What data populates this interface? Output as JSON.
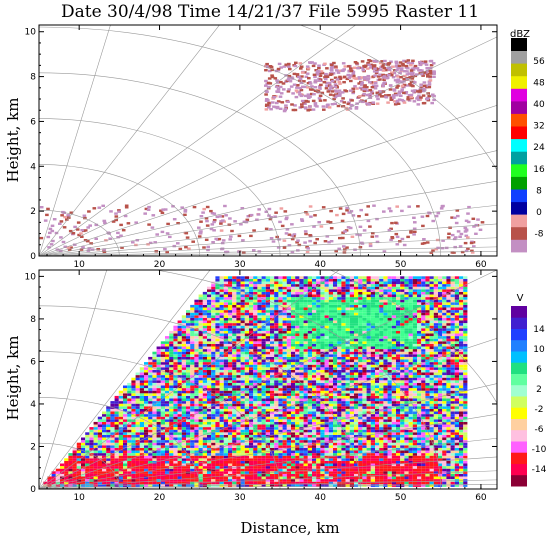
{
  "title": "Date 30/4/98 Time 14/21/37 File 5995 Raster 11",
  "xlabel": "Distance, km",
  "chart_data": [
    {
      "type": "heatmap",
      "ylabel": "Height, km",
      "xlim": [
        5,
        62
      ],
      "ylim": [
        0,
        10.3
      ],
      "xticks": [
        "10",
        "20",
        "30",
        "40",
        "50",
        "60"
      ],
      "yticks": [
        "0",
        "2",
        "4",
        "6",
        "8",
        "10"
      ],
      "colorbar": {
        "unit": "dBZ",
        "labels": [
          "56",
          "48",
          "40",
          "32",
          "24",
          "16",
          "8",
          "0",
          "-8"
        ],
        "colors": [
          "#c38fc3",
          "#b8524a",
          "#f0a0a0",
          "#0000a0",
          "#1040ff",
          "#00a000",
          "#20ff20",
          "#00a0a0",
          "#00ffff",
          "#ff0000",
          "#ff5000",
          "#a000a0",
          "#e000e0",
          "#f0f000",
          "#c0c000",
          "#a0a0a0",
          "#000000"
        ]
      },
      "echoes": [
        {
          "name": "upper cell",
          "x": [
            33,
            45
          ],
          "y": [
            6.5,
            8.7
          ],
          "dbz": [
            -8,
            8
          ]
        },
        {
          "name": "upper right cell",
          "x": [
            45,
            54
          ],
          "y": [
            6.8,
            8.8
          ],
          "dbz": [
            -8,
            4
          ]
        },
        {
          "name": "low layer",
          "x": [
            5,
            60
          ],
          "y": [
            0.2,
            2.3
          ],
          "dbz": [
            -8,
            4
          ]
        }
      ]
    },
    {
      "type": "heatmap",
      "ylabel": "Height, km",
      "xlim": [
        5,
        62
      ],
      "ylim": [
        0,
        10.3
      ],
      "xticks": [
        "10",
        "20",
        "30",
        "40",
        "50",
        "60"
      ],
      "yticks": [
        "0",
        "2",
        "4",
        "6",
        "8",
        "10"
      ],
      "colorbar": {
        "unit": "V",
        "labels": [
          "14",
          "10",
          "6",
          "2",
          "-2",
          "-6",
          "-10",
          "-14"
        ],
        "colors": [
          "#8b0035",
          "#ff0050",
          "#ff1a1a",
          "#ff60ff",
          "#ffc0e0",
          "#ffd0a0",
          "#ffff00",
          "#d0ff60",
          "#a0ffd0",
          "#60ffa0",
          "#20e080",
          "#00c0ff",
          "#2080ff",
          "#2040ff",
          "#4020d0",
          "#6000a0"
        ]
      },
      "features": [
        {
          "name": "noise wedge",
          "x": [
            5,
            58
          ],
          "y": [
            0,
            10
          ]
        },
        {
          "name": "upper positive velocities",
          "x": [
            36,
            52
          ],
          "y": [
            6.5,
            9.0
          ],
          "v": [
            4,
            8
          ]
        },
        {
          "name": "low negative velocities",
          "x": [
            5,
            55
          ],
          "y": [
            0.2,
            1.5
          ],
          "v": [
            -14,
            -8
          ]
        }
      ]
    }
  ]
}
